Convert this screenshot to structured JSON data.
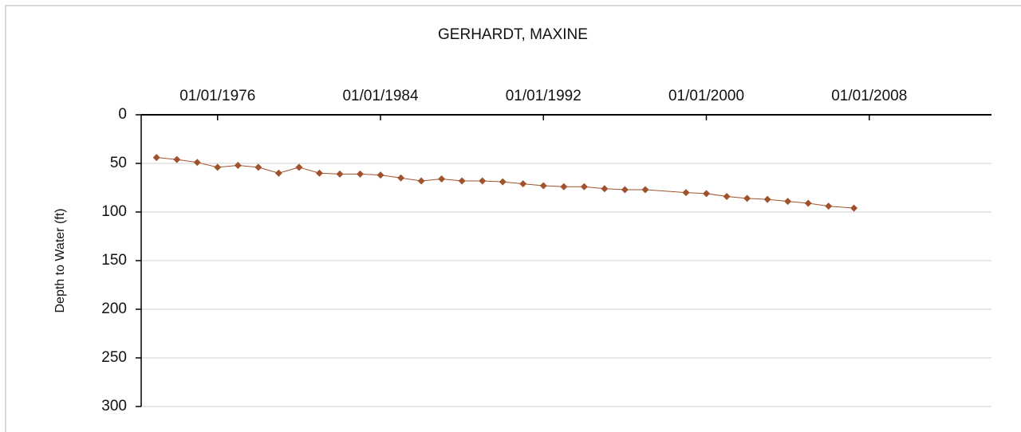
{
  "chart_data": {
    "type": "line",
    "title": "GERHARDT, MAXINE",
    "y_label": "Depth to Water (ft)",
    "x": [
      "1973-01-01",
      "1974-01-01",
      "1975-01-01",
      "1976-01-01",
      "1977-01-01",
      "1978-01-01",
      "1979-01-01",
      "1980-01-01",
      "1981-01-01",
      "1982-01-01",
      "1983-01-01",
      "1984-01-01",
      "1985-01-01",
      "1986-01-01",
      "1987-01-01",
      "1988-01-01",
      "1989-01-01",
      "1990-01-01",
      "1991-01-01",
      "1992-01-01",
      "1993-01-01",
      "1994-01-01",
      "1995-01-01",
      "1996-01-01",
      "1997-01-01",
      "1999-01-01",
      "2000-01-01",
      "2001-01-01",
      "2002-01-01",
      "2003-01-01",
      "2004-01-01",
      "2005-01-01",
      "2006-01-01",
      "2007-04-01"
    ],
    "series": [
      {
        "name": "Depth to Water",
        "color": "#a0522d",
        "values": [
          44,
          46,
          49,
          54,
          52,
          54,
          60,
          54,
          60,
          61,
          61,
          62,
          65,
          68,
          66,
          68,
          68,
          69,
          71,
          73,
          74,
          74,
          76,
          77,
          77,
          80,
          81,
          84,
          86,
          87,
          89,
          91,
          94,
          96
        ]
      }
    ],
    "xlim": [
      "1972-04-01",
      "2014-01-01"
    ],
    "xticks": [
      {
        "value": "1976-01-01",
        "label": "01/01/1976"
      },
      {
        "value": "1984-01-01",
        "label": "01/01/1984"
      },
      {
        "value": "1992-01-01",
        "label": "01/01/1992"
      },
      {
        "value": "2000-01-01",
        "label": "01/01/2000"
      },
      {
        "value": "2008-01-01",
        "label": "01/01/2008"
      }
    ],
    "ylim": [
      0,
      300
    ],
    "yticks": [
      0,
      50,
      100,
      150,
      200,
      250,
      300
    ],
    "y_inverted": true,
    "grid": true
  }
}
